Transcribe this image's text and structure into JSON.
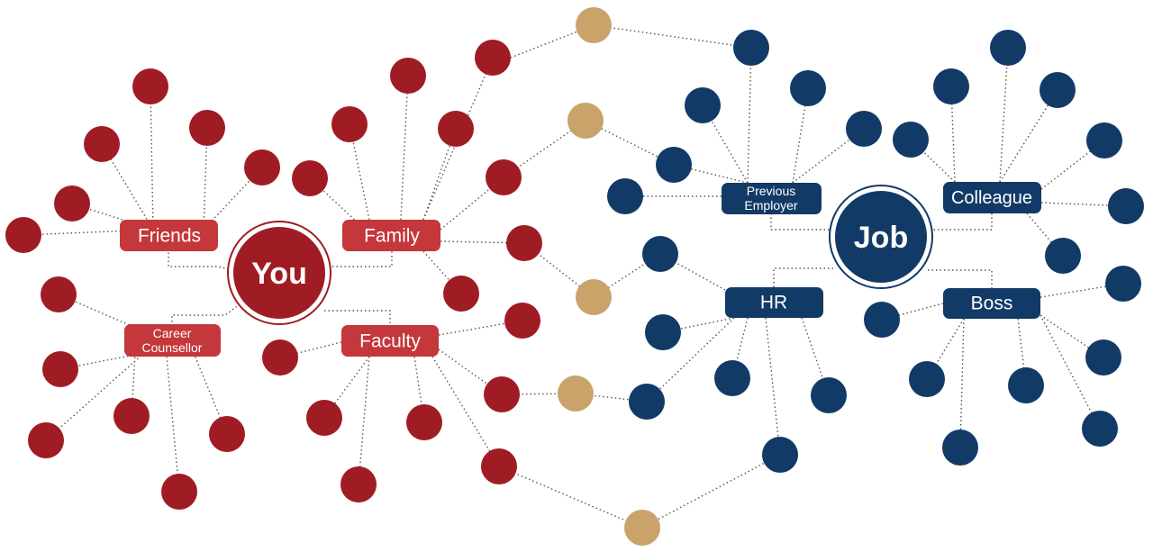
{
  "colors": {
    "red": "#a01c24",
    "red_label": "#c4373a",
    "navy": "#123a66",
    "gold": "#c9a36a"
  },
  "hubs": {
    "you": "You",
    "job": "Job"
  },
  "labels": {
    "friends": "Friends",
    "family": "Family",
    "career": [
      "Career",
      "Counsellor"
    ],
    "faculty": "Faculty",
    "previous": [
      "Previous",
      "Employer"
    ],
    "colleague": "Colleague",
    "hr": "HR",
    "boss": "Boss"
  }
}
